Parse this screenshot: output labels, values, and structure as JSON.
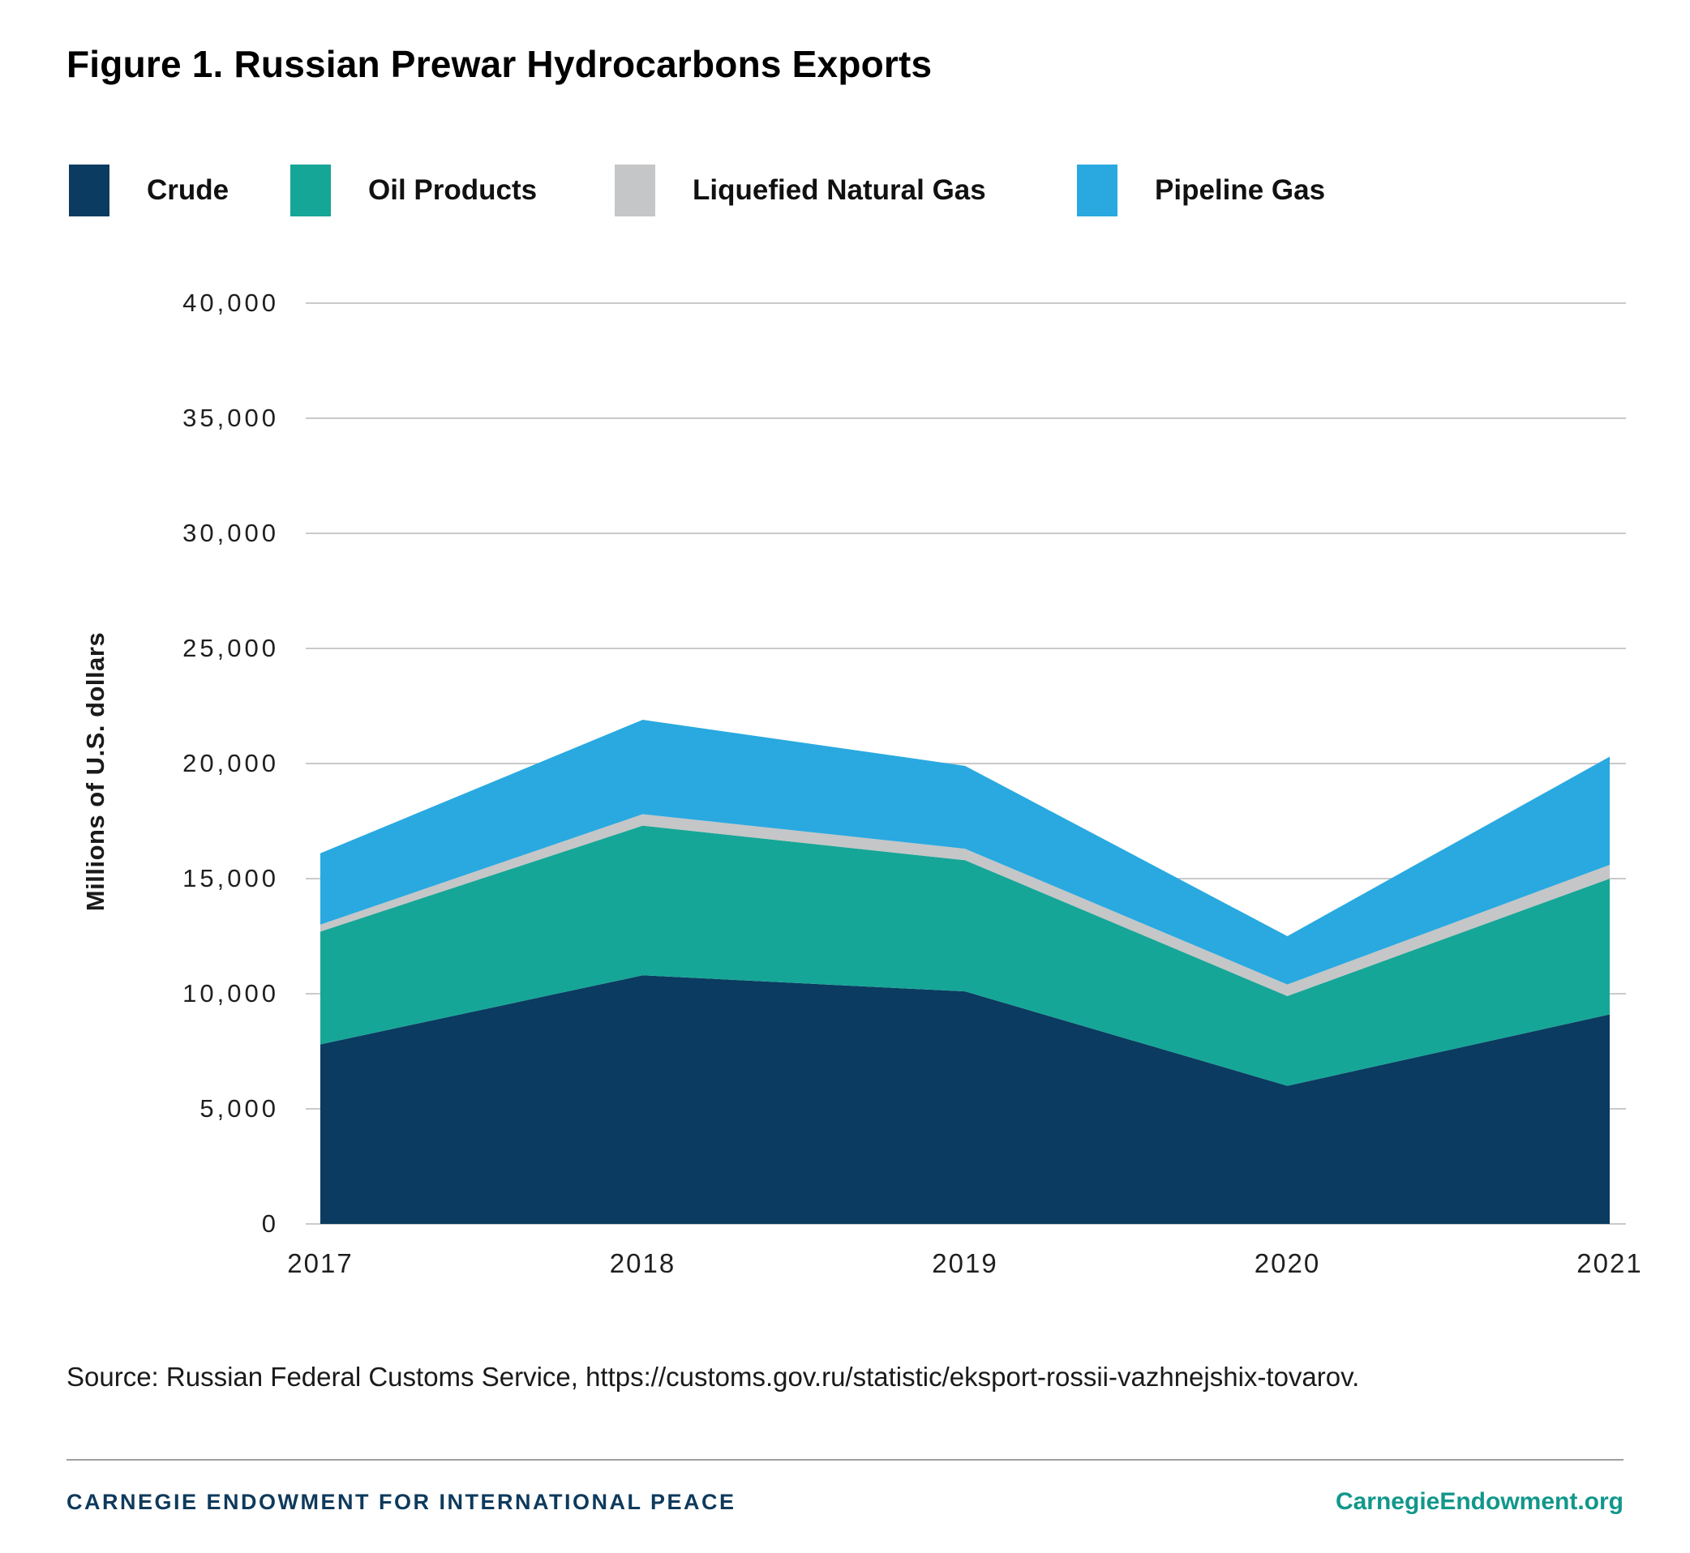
{
  "header": {
    "title": "Figure 1. Russian Prewar Hydrocarbons Exports"
  },
  "chart_data": {
    "type": "area",
    "stacked": true,
    "title": "Figure 1. Russian Prewar Hydrocarbons Exports",
    "categories": [
      "2017",
      "2018",
      "2019",
      "2020",
      "2021"
    ],
    "series": [
      {
        "name": "Crude",
        "color": "#0b3b60",
        "values": [
          7800,
          10800,
          10100,
          6000,
          9100
        ]
      },
      {
        "name": "Oil Products",
        "color": "#16a697",
        "values": [
          4900,
          6500,
          5700,
          3900,
          5900
        ]
      },
      {
        "name": "Liquefied Natural Gas",
        "color": "#c5c6c7",
        "values": [
          300,
          500,
          500,
          500,
          600
        ]
      },
      {
        "name": "Pipeline Gas",
        "color": "#29a9e0",
        "values": [
          3100,
          4100,
          3600,
          2100,
          4700
        ]
      }
    ],
    "stacked_totals": [
      16100,
      21900,
      19900,
      12500,
      20300
    ],
    "xlabel": "",
    "ylabel": "Millions of U.S. dollars",
    "ylim": [
      0,
      40000
    ],
    "ytick_step": 5000,
    "ytick_labels": [
      "0",
      "5,000",
      "10,000",
      "15,000",
      "20,000",
      "25,000",
      "30,000",
      "35,000",
      "40,000"
    ],
    "grid": true,
    "gridline_color": "#cacaca",
    "legend_position": "top"
  },
  "footer": {
    "source": "Source: Russian Federal Customs Service, https://customs.gov.ru/statistic/eksport-rossii-vazhnejshix-tovarov.",
    "org": "CARNEGIE ENDOWMENT FOR INTERNATIONAL PEACE",
    "org_color": "#0e3a5c",
    "site": "CarnegieEndowment.org",
    "site_color": "#11978b"
  }
}
